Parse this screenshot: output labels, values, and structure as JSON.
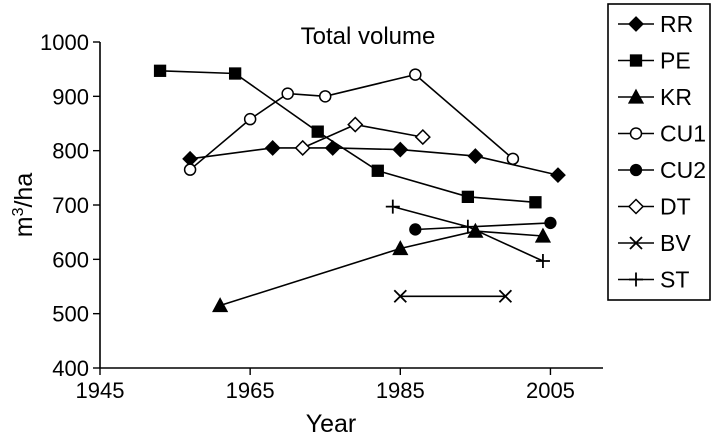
{
  "chart_data": {
    "type": "line",
    "title": "Total volume",
    "xlabel": "Year",
    "ylabel": "m³/ha",
    "xlim": [
      1945,
      2012
    ],
    "ylim": [
      400,
      1000
    ],
    "xticks": [
      1945,
      1965,
      1985,
      2005
    ],
    "yticks": [
      400,
      500,
      600,
      700,
      800,
      900,
      1000
    ],
    "legend_position": "right",
    "series": [
      {
        "name": "RR",
        "marker": "diamond-filled",
        "x": [
          1957,
          1968,
          1976,
          1985,
          1995,
          2006
        ],
        "y": [
          785,
          805,
          805,
          802,
          790,
          755
        ]
      },
      {
        "name": "PE",
        "marker": "square-filled",
        "x": [
          1953,
          1963,
          1974,
          1982,
          1994,
          2003
        ],
        "y": [
          947,
          942,
          835,
          763,
          715,
          705
        ]
      },
      {
        "name": "KR",
        "marker": "triangle-filled",
        "x": [
          1961,
          1985,
          1995,
          2004
        ],
        "y": [
          515,
          620,
          652,
          643
        ]
      },
      {
        "name": "CU1",
        "marker": "circle-open",
        "x": [
          1957,
          1965,
          1970,
          1975,
          1987,
          2000
        ],
        "y": [
          765,
          858,
          905,
          900,
          940,
          785
        ]
      },
      {
        "name": "CU2",
        "marker": "circle-filled",
        "x": [
          1987,
          2005
        ],
        "y": [
          655,
          667
        ]
      },
      {
        "name": "DT",
        "marker": "diamond-open",
        "x": [
          1972,
          1979,
          1988
        ],
        "y": [
          805,
          848,
          825
        ]
      },
      {
        "name": "BV",
        "marker": "x",
        "x": [
          1985,
          1999
        ],
        "y": [
          532,
          532
        ]
      },
      {
        "name": "ST",
        "marker": "plus",
        "x": [
          1984,
          1994,
          2004
        ],
        "y": [
          697,
          660,
          597
        ]
      }
    ]
  }
}
